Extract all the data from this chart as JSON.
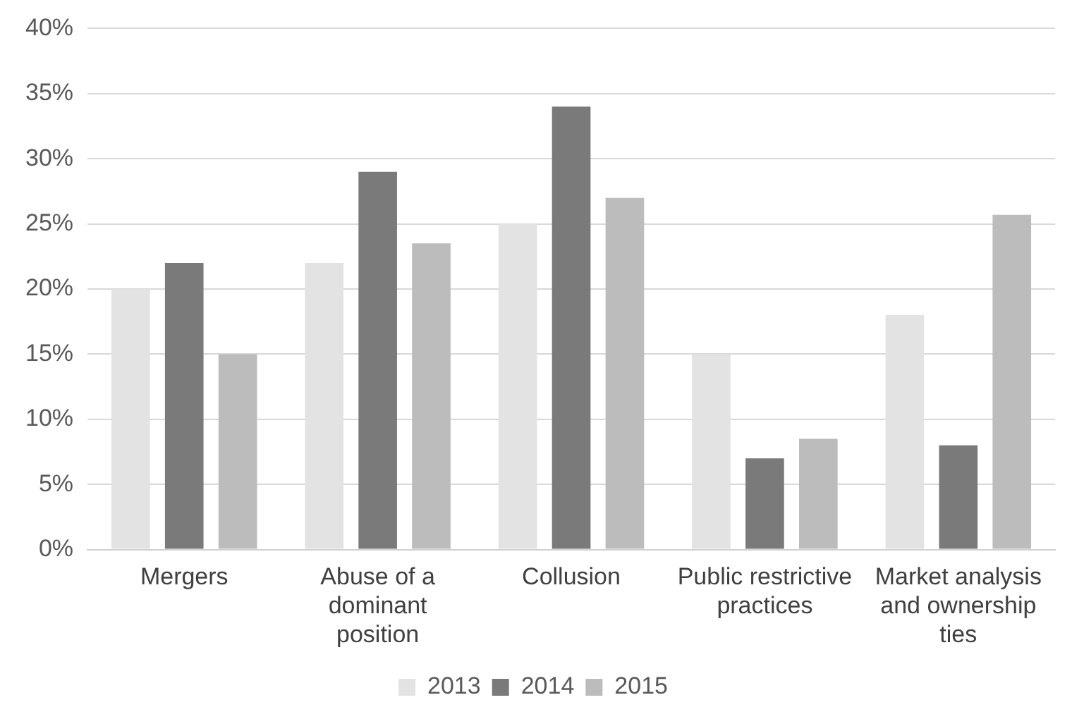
{
  "chart_data": {
    "type": "bar",
    "categories": [
      "Mergers",
      "Abuse of a dominant position",
      "Collusion",
      "Public restrictive practices",
      "Market analysis and ownership ties"
    ],
    "series": [
      {
        "name": "2013",
        "color": "#e3e3e3",
        "values": [
          20,
          22,
          25,
          15,
          18
        ]
      },
      {
        "name": "2014",
        "color": "#7a7a7a",
        "values": [
          22,
          29,
          34,
          7,
          8
        ]
      },
      {
        "name": "2015",
        "color": "#bcbcbc",
        "values": [
          15,
          23.5,
          27,
          8.5,
          25.7
        ]
      }
    ],
    "ylim": [
      0,
      40
    ],
    "yticks": [
      {
        "value": 0,
        "label": "0%"
      },
      {
        "value": 5,
        "label": "5%"
      },
      {
        "value": 10,
        "label": "10%"
      },
      {
        "value": 15,
        "label": "15%"
      },
      {
        "value": 20,
        "label": "20%"
      },
      {
        "value": 25,
        "label": "25%"
      },
      {
        "value": 30,
        "label": "30%"
      },
      {
        "value": 35,
        "label": "35%"
      },
      {
        "value": 40,
        "label": "40%"
      }
    ],
    "grid": "y",
    "legend": "bottom"
  }
}
